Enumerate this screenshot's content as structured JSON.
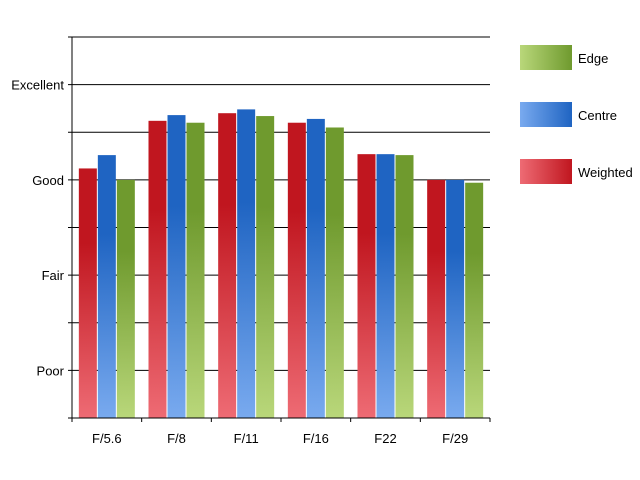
{
  "chart_data": {
    "type": "bar",
    "categories": [
      "F/5.6",
      "F/8",
      "F/11",
      "F/16",
      "F22",
      "F/29"
    ],
    "series": [
      {
        "name": "Weighted",
        "values": [
          2.62,
          3.12,
          3.2,
          3.1,
          2.77,
          2.5
        ],
        "color": "#c0161f"
      },
      {
        "name": "Centre",
        "values": [
          2.76,
          3.18,
          3.24,
          3.14,
          2.77,
          2.5
        ],
        "color": "#1f64c2"
      },
      {
        "name": "Edge",
        "values": [
          2.5,
          3.1,
          3.17,
          3.05,
          2.76,
          2.47
        ],
        "color": "#6f9a2e"
      }
    ],
    "y_tick_labels": [
      "",
      "Poor",
      "",
      "Fair",
      "",
      "Good",
      "",
      "Excellent"
    ],
    "ylim": [
      0,
      4
    ],
    "ytick_step": 0.5,
    "grid": true,
    "legend_order": [
      "Edge",
      "Centre",
      "Weighted"
    ],
    "legend_position": "right",
    "title": "",
    "xlabel": "",
    "ylabel": ""
  }
}
